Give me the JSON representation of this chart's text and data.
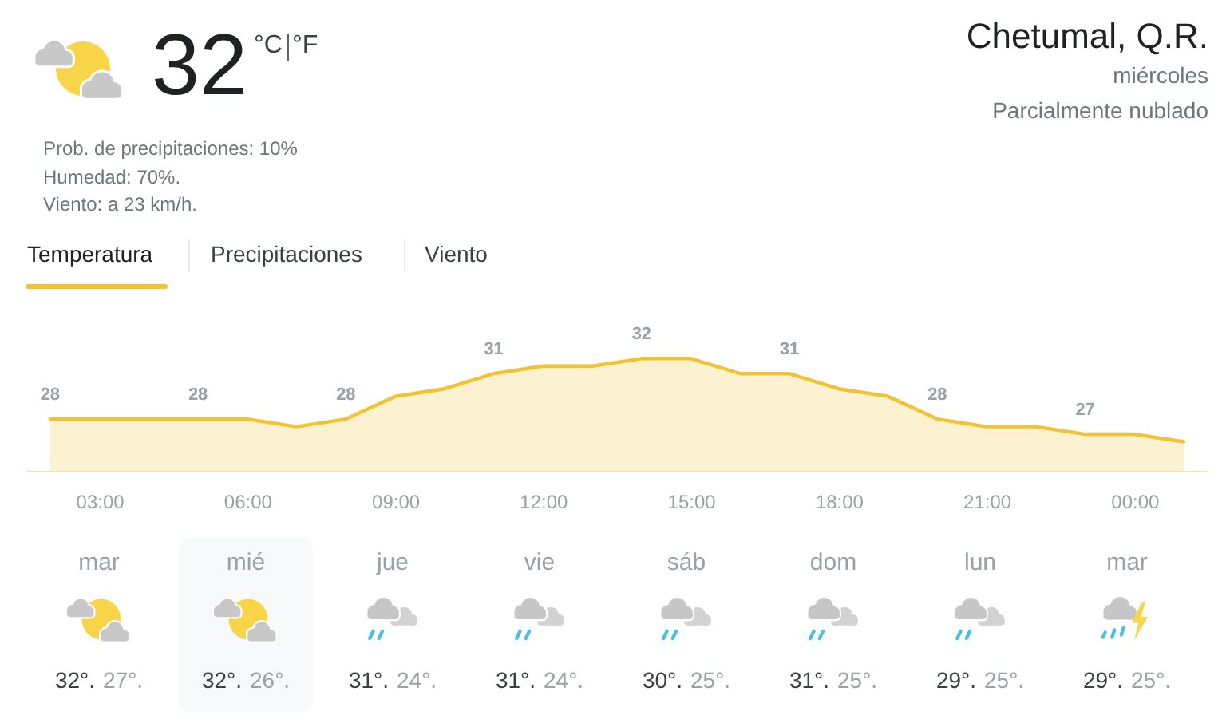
{
  "chart_data": {
    "type": "area",
    "title": "Chetumal, Q.R.",
    "x": [
      2,
      3,
      4,
      5,
      6,
      7,
      8,
      9,
      10,
      11,
      12,
      13,
      14,
      15,
      16,
      17,
      18,
      19,
      20,
      21,
      22,
      23,
      24,
      25
    ],
    "values": [
      28,
      28,
      28,
      28,
      28,
      27.5,
      28,
      29.5,
      30,
      31,
      31.5,
      31.5,
      32,
      32,
      31,
      31,
      30,
      29.5,
      28,
      27.5,
      27.5,
      27,
      27,
      26.5
    ],
    "value_labels": [
      "28",
      null,
      null,
      "28",
      null,
      null,
      "28",
      null,
      null,
      "31",
      null,
      null,
      "32",
      null,
      null,
      "31",
      null,
      null,
      "28",
      null,
      null,
      "27",
      null,
      null
    ],
    "color": "#f2c230",
    "xlim": [
      1.5,
      25.5
    ],
    "xticks": [
      {
        "value": 3,
        "label": "03:00"
      },
      {
        "value": 6,
        "label": "06:00"
      },
      {
        "value": 9,
        "label": "09:00"
      },
      {
        "value": 12,
        "label": "12:00"
      },
      {
        "value": 15,
        "label": "15:00"
      },
      {
        "value": 18,
        "label": "18:00"
      },
      {
        "value": 21,
        "label": "21:00"
      },
      {
        "value": 24,
        "label": "00:00"
      }
    ],
    "tick_labels": "x",
    "annotations": [
      "32",
      "°C",
      "°F",
      "Prob. de precipitaciones: 10%",
      "Humedad: 70%.",
      "Viento: a 23 km/h.",
      "miércoles",
      "Parcialmente nublado",
      "Temperatura",
      "Precipitaciones",
      "Viento",
      "mar",
      "32°.",
      "27°.",
      "mié",
      "32°.",
      "26°.",
      "jue",
      "31°.",
      "24°.",
      "vie",
      "31°.",
      "24°.",
      "sáb",
      "30°.",
      "25°.",
      "dom",
      "31°.",
      "25°.",
      "lun",
      "29°.",
      "25°.",
      "mar",
      "29°.",
      "25°."
    ]
  }
}
